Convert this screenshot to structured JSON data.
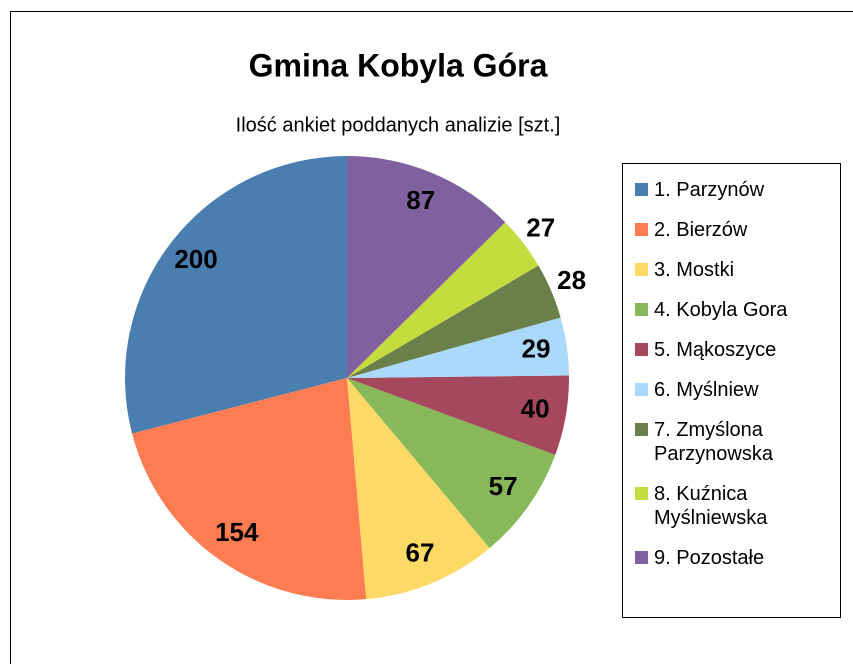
{
  "chart_data": {
    "type": "pie",
    "title": "Gmina Kobyla Góra",
    "subtitle": "Ilość ankiet poddanych analizie [szt.]",
    "categories": [
      "1. Parzynów",
      "2. Bierzów",
      "3. Mostki",
      "4. Kobyla Gora",
      "5. Mąkoszyce",
      "6. Myślniew",
      "7. Zmyślona Parzynowska",
      "8. Kuźnica Myślniewska",
      "9. Pozostałe"
    ],
    "values": [
      200,
      154,
      67,
      57,
      40,
      29,
      28,
      27,
      87
    ],
    "colors": [
      "#4a7eb0",
      "#fd7c52",
      "#ffd966",
      "#87b95a",
      "#a5485e",
      "#aad9fb",
      "#6b7f4a",
      "#c5dc3f",
      "#8061a0"
    ],
    "legend": "right"
  }
}
